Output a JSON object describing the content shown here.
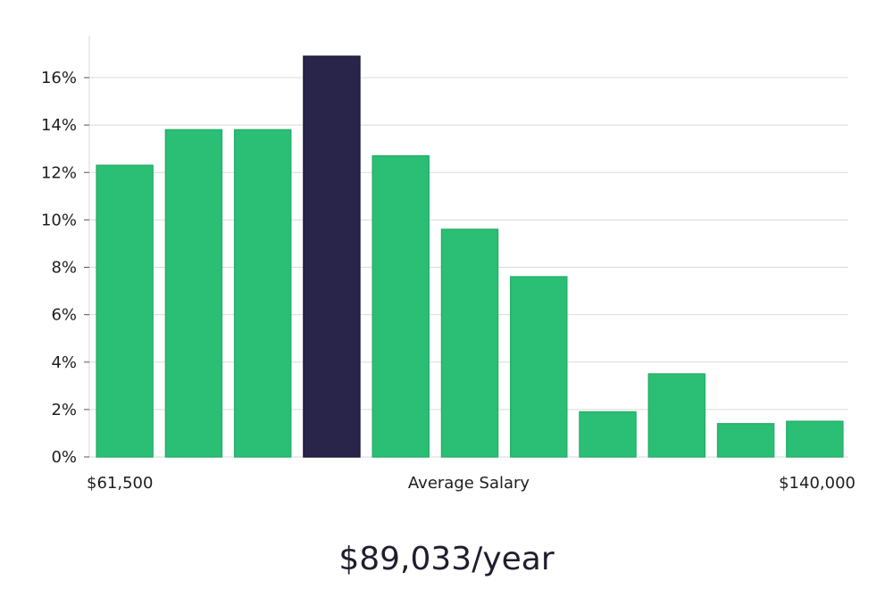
{
  "chart_data": {
    "type": "bar",
    "values": [
      12.3,
      13.8,
      13.8,
      16.9,
      12.7,
      9.6,
      7.6,
      1.9,
      3.5,
      1.4,
      1.5
    ],
    "highlight_index": 3,
    "yticks": [
      "0%",
      "2%",
      "4%",
      "6%",
      "8%",
      "10%",
      "12%",
      "14%",
      "16%"
    ],
    "ylim": [
      0,
      17.5
    ],
    "grid": true,
    "x_range_labels": {
      "min": "$61,500",
      "center": "Average Salary",
      "max": "$140,000"
    },
    "colors": {
      "bar": "#2bbf76",
      "highlight": "#29254a",
      "grid": "#d9d9d9"
    }
  },
  "salary_figure": "$89,033/year"
}
